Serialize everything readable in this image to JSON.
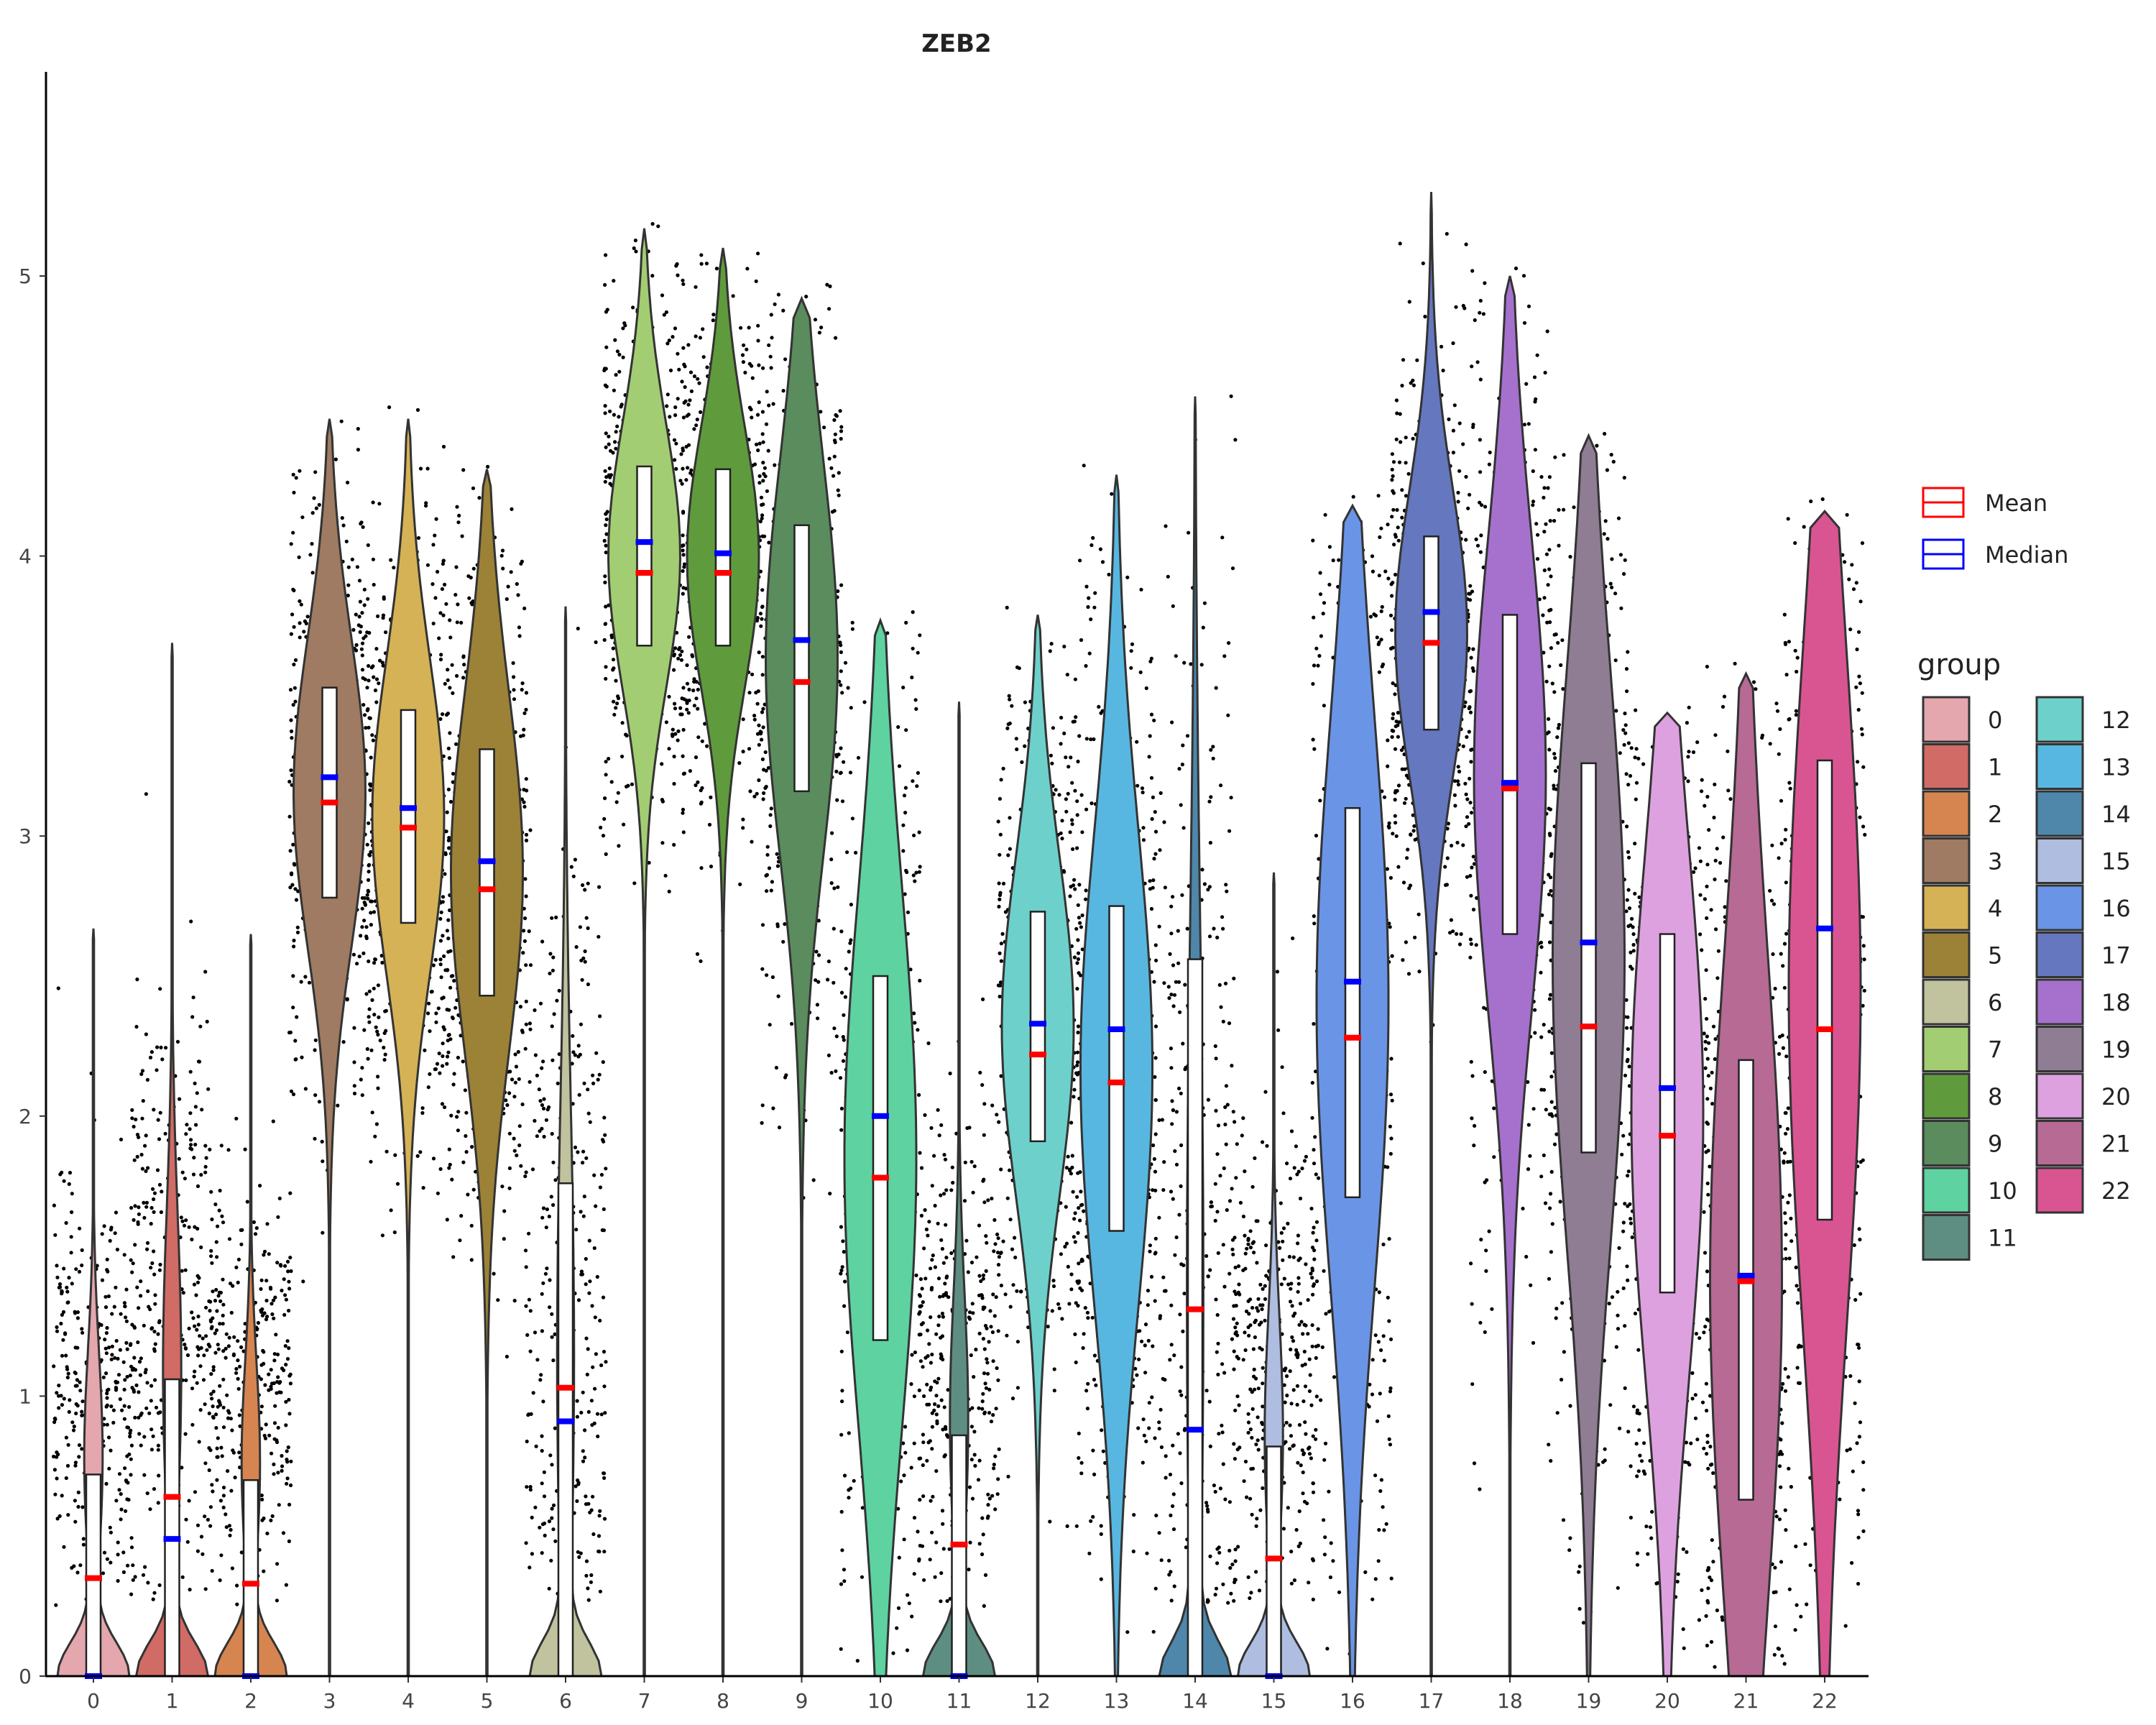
{
  "chart_data": {
    "type": "violin",
    "title": "ZEB2",
    "xlabel": "",
    "ylabel": "",
    "ylim": [
      0,
      5.72
    ],
    "y_ticks": [
      0,
      1,
      2,
      3,
      4,
      5
    ],
    "grid": false,
    "legend_position": "right",
    "stat_legend": [
      {
        "label": "Mean",
        "color": "#ff0000"
      },
      {
        "label": "Median",
        "color": "#0000ff"
      }
    ],
    "group_legend_title": "group",
    "groups": [
      {
        "name": "0",
        "color": "#e3a7ad",
        "vmax": 2.67,
        "q1": 0.0,
        "q3": 0.72,
        "mean": 0.35,
        "median": 0.0
      },
      {
        "name": "1",
        "color": "#d06b66",
        "vmax": 3.69,
        "q1": 0.0,
        "q3": 1.06,
        "mean": 0.64,
        "median": 0.49
      },
      {
        "name": "2",
        "color": "#d68550",
        "vmax": 2.65,
        "q1": 0.0,
        "q3": 0.7,
        "mean": 0.33,
        "median": 0.0
      },
      {
        "name": "3",
        "color": "#9e7b62",
        "vmax": 4.49,
        "q1": 2.78,
        "q3": 3.53,
        "mean": 3.12,
        "median": 3.21
      },
      {
        "name": "4",
        "color": "#d5b255",
        "vmax": 4.49,
        "q1": 2.69,
        "q3": 3.45,
        "mean": 3.03,
        "median": 3.1
      },
      {
        "name": "5",
        "color": "#9c8237",
        "vmax": 4.31,
        "q1": 2.43,
        "q3": 3.31,
        "mean": 2.81,
        "median": 2.91
      },
      {
        "name": "6",
        "color": "#c1c29e",
        "vmax": 3.82,
        "q1": 0.0,
        "q3": 1.76,
        "mean": 1.03,
        "median": 0.91
      },
      {
        "name": "7",
        "color": "#a3cd72",
        "vmax": 5.17,
        "q1": 3.68,
        "q3": 4.32,
        "mean": 3.94,
        "median": 4.05
      },
      {
        "name": "8",
        "color": "#5f9b3c",
        "vmax": 5.1,
        "q1": 3.68,
        "q3": 4.31,
        "mean": 3.94,
        "median": 4.01
      },
      {
        "name": "9",
        "color": "#5a8c5e",
        "vmax": 4.92,
        "q1": 3.16,
        "q3": 4.11,
        "mean": 3.55,
        "median": 3.7
      },
      {
        "name": "10",
        "color": "#5ed2a0",
        "vmax": 3.77,
        "q1": 1.2,
        "q3": 2.5,
        "mean": 1.78,
        "median": 2.0
      },
      {
        "name": "11",
        "color": "#5e8e82",
        "vmax": 3.48,
        "q1": 0.0,
        "q3": 0.86,
        "mean": 0.47,
        "median": 0.0
      },
      {
        "name": "12",
        "color": "#6ed0cb",
        "vmax": 3.79,
        "q1": 1.91,
        "q3": 2.73,
        "mean": 2.22,
        "median": 2.33
      },
      {
        "name": "13",
        "color": "#58b7e0",
        "vmax": 4.29,
        "q1": 1.59,
        "q3": 2.75,
        "mean": 2.12,
        "median": 2.31
      },
      {
        "name": "14",
        "color": "#4e87aa",
        "vmax": 4.57,
        "q1": 0.0,
        "q3": 2.56,
        "mean": 1.31,
        "median": 0.88
      },
      {
        "name": "15",
        "color": "#aebde0",
        "vmax": 2.87,
        "q1": 0.0,
        "q3": 0.82,
        "mean": 0.42,
        "median": 0.0
      },
      {
        "name": "16",
        "color": "#6a95e6",
        "vmax": 4.18,
        "q1": 1.71,
        "q3": 3.1,
        "mean": 2.28,
        "median": 2.48
      },
      {
        "name": "17",
        "color": "#6577be",
        "vmax": 5.3,
        "q1": 3.38,
        "q3": 4.07,
        "mean": 3.69,
        "median": 3.8
      },
      {
        "name": "18",
        "color": "#a571cd",
        "vmax": 5.0,
        "q1": 2.65,
        "q3": 3.79,
        "mean": 3.17,
        "median": 3.19
      },
      {
        "name": "19",
        "color": "#8e7d93",
        "vmax": 4.43,
        "q1": 1.87,
        "q3": 3.26,
        "mean": 2.32,
        "median": 2.62
      },
      {
        "name": "20",
        "color": "#dea1e0",
        "vmax": 3.44,
        "q1": 1.37,
        "q3": 2.65,
        "mean": 1.93,
        "median": 2.1
      },
      {
        "name": "21",
        "color": "#b66a94",
        "vmax": 3.58,
        "q1": 0.63,
        "q3": 2.2,
        "mean": 1.41,
        "median": 1.43
      },
      {
        "name": "22",
        "color": "#d85591",
        "vmax": 4.16,
        "q1": 1.63,
        "q3": 3.27,
        "mean": 2.31,
        "median": 2.67
      }
    ]
  }
}
